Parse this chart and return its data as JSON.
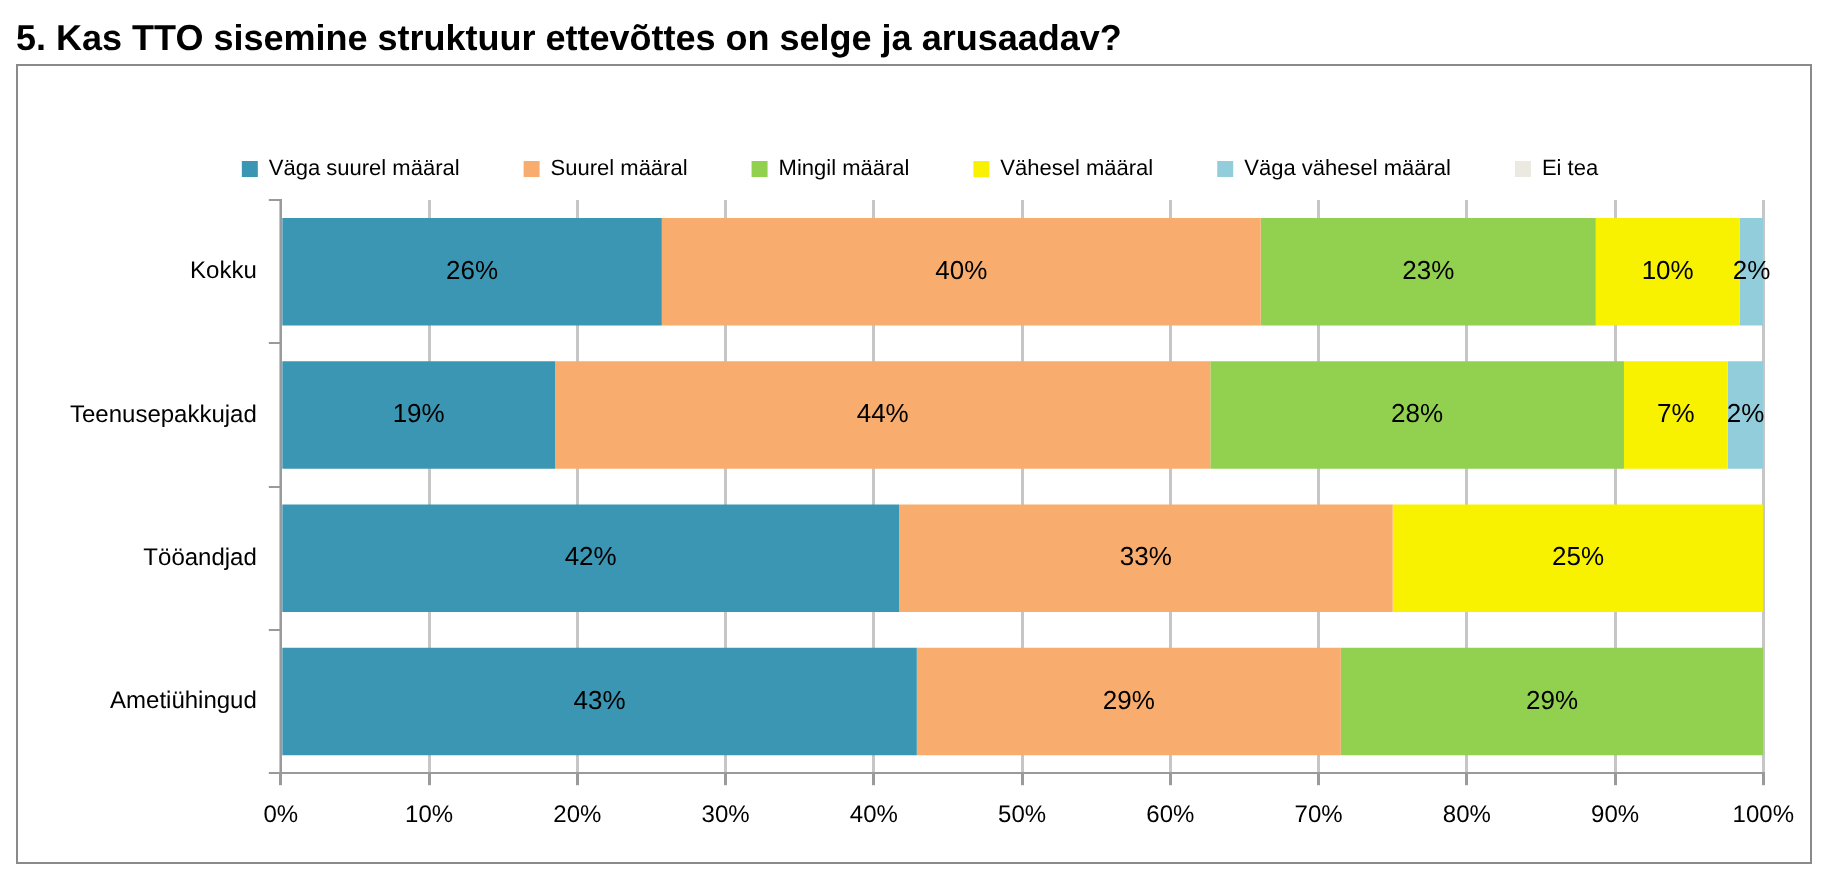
{
  "chart_data": {
    "type": "bar",
    "orientation": "horizontal",
    "stacked": true,
    "title": "5. Kas TTO sisemine struktuur ettevõttes on selge ja arusaadav?",
    "categories": [
      "Kokku",
      "Teenusepakkujad",
      "Tööandjad",
      "Ametiühingud"
    ],
    "series": [
      {
        "name": "Väga suurel määral",
        "color": "#3a96b2",
        "values": [
          25.7,
          18.5,
          41.7,
          42.9
        ],
        "value_labels": [
          "26%",
          "19%",
          "42%",
          "43%"
        ]
      },
      {
        "name": "Suurel määral",
        "color": "#f8ac6e",
        "values": [
          40.4,
          44.2,
          33.3,
          28.6
        ],
        "value_labels": [
          "40%",
          "44%",
          "33%",
          "29%"
        ]
      },
      {
        "name": "Mingil määral",
        "color": "#92d050",
        "values": [
          22.6,
          27.9,
          null,
          28.5
        ],
        "value_labels": [
          "23%",
          "28%",
          null,
          "29%"
        ]
      },
      {
        "name": "Vähesel määral",
        "color": "#f8f200",
        "values": [
          9.7,
          7.0,
          25.0,
          null
        ],
        "value_labels": [
          "10%",
          "7%",
          "25%",
          null
        ]
      },
      {
        "name": "Väga vähesel määral",
        "color": "#92cddc",
        "values": [
          1.6,
          2.4,
          null,
          null
        ],
        "value_labels": [
          "2%",
          "2%",
          null,
          null
        ]
      },
      {
        "name": "Ei tea",
        "color": "#eceae0",
        "values": [
          null,
          null,
          null,
          null
        ],
        "value_labels": [
          null,
          null,
          null,
          null
        ]
      }
    ],
    "xlim": [
      0,
      100
    ],
    "xticks": [
      {
        "value": 0,
        "label": "0%"
      },
      {
        "value": 10,
        "label": "10%"
      },
      {
        "value": 20,
        "label": "20%"
      },
      {
        "value": 30,
        "label": "30%"
      },
      {
        "value": 40,
        "label": "40%"
      },
      {
        "value": 50,
        "label": "50%"
      },
      {
        "value": 60,
        "label": "60%"
      },
      {
        "value": 70,
        "label": "70%"
      },
      {
        "value": 80,
        "label": "80%"
      },
      {
        "value": 90,
        "label": "90%"
      },
      {
        "value": 100,
        "label": "100%"
      }
    ],
    "grid": "x",
    "legend": "top"
  }
}
